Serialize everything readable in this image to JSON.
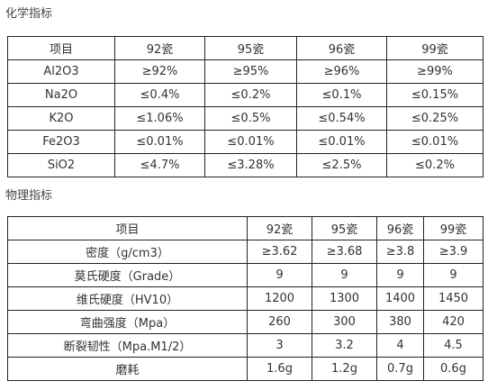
{
  "chemical": {
    "title": "化学指标",
    "header": [
      "项目",
      "92瓷",
      "95瓷",
      "96瓷",
      "99瓷"
    ],
    "rows": [
      [
        "Al2O3",
        "≥92%",
        "≥95%",
        "≥96%",
        "≥99%"
      ],
      [
        "Na2O",
        "≤0.4%",
        "≤0.2%",
        "≤0.1%",
        "≤0.15%"
      ],
      [
        "K2O",
        "≤1.06%",
        "≤0.5%",
        "≤0.54%",
        "≤0.25%"
      ],
      [
        "Fe2O3",
        "≤0.01%",
        "≤0.01%",
        "≤0.01%",
        "≤0.01%"
      ],
      [
        "SiO2",
        "≤4.7%",
        "≤3.28%",
        "≤2.5%",
        "≤0.2%"
      ]
    ]
  },
  "physical": {
    "title": "物理指标",
    "header": [
      "项目",
      "92瓷",
      "95瓷",
      "96瓷",
      "99瓷"
    ],
    "rows": [
      [
        "密度（g/cm3）",
        "≥3.62",
        "≥3.68",
        "≥3.8",
        "≥3.9"
      ],
      [
        "莫氏硬度（Grade）",
        "9",
        "9",
        "9",
        "9"
      ],
      [
        "维氏硬度（HV10）",
        "1200",
        "1300",
        "1400",
        "1450"
      ],
      [
        "弯曲强度（Mpa）",
        "260",
        "300",
        "380",
        "420"
      ],
      [
        "断裂韧性（Mpa.M1/2）",
        "3",
        "3.2",
        "4",
        "4.5"
      ],
      [
        "磨耗",
        "1.6g",
        "1.2g",
        "0.7g",
        "0.6g"
      ]
    ]
  }
}
